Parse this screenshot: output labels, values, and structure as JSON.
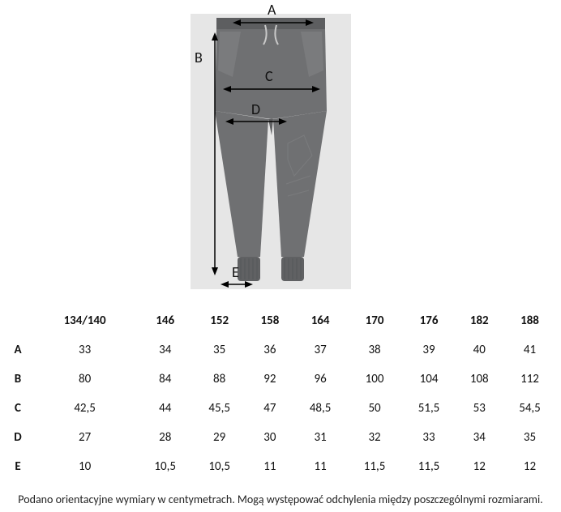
{
  "diagram": {
    "background_color": "#e6e6e6",
    "pants_color": "#6f7072",
    "pants_highlight": "#7a7b7d",
    "cuff_color": "#606163",
    "waist_color": "#5d5e60",
    "cord_color": "#c9c9c9",
    "arrow_color": "#000000",
    "labels": {
      "A": "A",
      "B": "B",
      "C": "C",
      "D": "D",
      "E": "E"
    },
    "label_fontsize": 18
  },
  "table": {
    "type": "table",
    "header_fontweight": "700",
    "cell_fontsize": 15,
    "columns": [
      "134/140",
      "146",
      "152",
      "158",
      "164",
      "170",
      "176",
      "182",
      "188"
    ],
    "rows": [
      {
        "label": "A",
        "values": [
          "33",
          "34",
          "35",
          "36",
          "37",
          "38",
          "39",
          "40",
          "41"
        ]
      },
      {
        "label": "B",
        "values": [
          "80",
          "84",
          "88",
          "92",
          "96",
          "100",
          "104",
          "108",
          "112"
        ]
      },
      {
        "label": "C",
        "values": [
          "42,5",
          "44",
          "45,5",
          "47",
          "48,5",
          "50",
          "51,5",
          "53",
          "54,5"
        ]
      },
      {
        "label": "D",
        "values": [
          "27",
          "28",
          "29",
          "30",
          "31",
          "32",
          "33",
          "34",
          "35"
        ]
      },
      {
        "label": "E",
        "values": [
          "10",
          "10,5",
          "10,5",
          "11",
          "11",
          "11,5",
          "11,5",
          "12",
          "12"
        ]
      }
    ]
  },
  "footnote": "Podano orientacyjne wymiary w centymetrach. Mogą występować odchylenia między poszczególnymi rozmiarami."
}
